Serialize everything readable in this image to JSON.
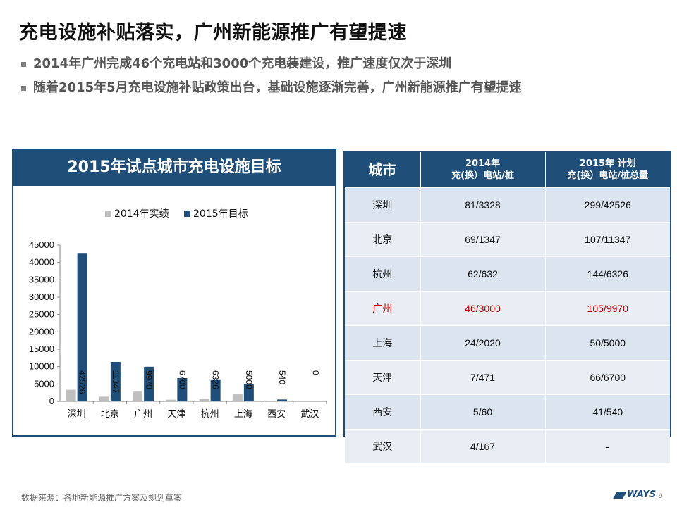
{
  "page": {
    "title": "充电设施补贴落实，广州新能源推广有望提速",
    "bullets": [
      "2014年广州完成46个充电站和3000个充电装建设，推广速度仅次于深圳",
      "随着2015年5月充电设施补贴政策出台，基础设施逐渐完善，广州新能源推广有望提速"
    ],
    "source": "数据来源：各地新能源推广方案及规划草案",
    "logo_text": "WAYS",
    "page_number": "9"
  },
  "colors": {
    "navy": "#1f4e79",
    "gray": "#bfbfbf",
    "highlight": "#c00000"
  },
  "chart_data": {
    "type": "bar",
    "title": "2015年试点城市充电设施目标",
    "categories": [
      "深圳",
      "北京",
      "广州",
      "天津",
      "杭州",
      "上海",
      "西安",
      "武汉"
    ],
    "series": [
      {
        "name": "2014年实绩",
        "values": [
          3328,
          1347,
          3000,
          471,
          632,
          2020,
          60,
          167
        ]
      },
      {
        "name": "2015年目标",
        "values": [
          42526,
          11347,
          9970,
          6700,
          6326,
          5000,
          540,
          0
        ],
        "labels": [
          "42526",
          "11347",
          "9970",
          "6700",
          "6326",
          "5000",
          "540",
          "0"
        ]
      }
    ],
    "yticks": [
      "0",
      "5000",
      "10000",
      "15000",
      "20000",
      "25000",
      "30000",
      "35000",
      "40000",
      "45000"
    ],
    "ylim": [
      0,
      45000
    ],
    "legend": "top"
  },
  "table": {
    "headers": [
      {
        "lines": [
          "城市"
        ]
      },
      {
        "lines": [
          "2014年",
          "充(换）电站/桩"
        ]
      },
      {
        "lines": [
          "2015年 计划",
          "充(换）电站/桩总量"
        ]
      }
    ],
    "rows": [
      {
        "city": "深圳",
        "y2014": "81/3328",
        "y2015": "299/42526"
      },
      {
        "city": "北京",
        "y2014": "69/1347",
        "y2015": "107/11347"
      },
      {
        "city": "杭州",
        "y2014": "62/632",
        "y2015": "144/6326"
      },
      {
        "city": "广州",
        "y2014": "46/3000",
        "y2015": "105/9970",
        "highlight": true
      },
      {
        "city": "上海",
        "y2014": "24/2020",
        "y2015": "50/5000"
      },
      {
        "city": "天津",
        "y2014": "7/471",
        "y2015": "66/6700"
      },
      {
        "city": "西安",
        "y2014": "5/60",
        "y2015": "41/540"
      },
      {
        "city": "武汉",
        "y2014": "4/167",
        "y2015": "-"
      }
    ]
  }
}
